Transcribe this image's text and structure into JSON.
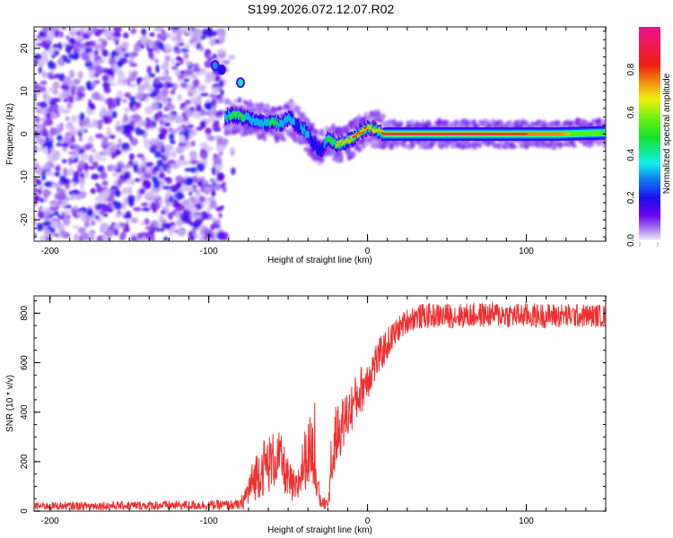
{
  "title": "S199.2026.072.12.07.R02",
  "chart_data": [
    {
      "type": "heatmap",
      "name": "spectrogram",
      "xlabel": "Height of straight line (km)",
      "ylabel": "Frequency (Hz)",
      "xlim": [
        -210,
        150
      ],
      "ylim": [
        -25,
        25
      ],
      "xticks": [
        -200,
        -100,
        0,
        100
      ],
      "yticks": [
        -20,
        -10,
        0,
        10,
        20
      ],
      "colorbar": {
        "label": "Normalized spectral amplitude",
        "range": [
          0,
          1
        ],
        "ticks": [
          0.0,
          0.2,
          0.4,
          0.6,
          0.8
        ],
        "colormap": "rainbow (violet-blue-cyan-green-yellow-red-magenta)"
      },
      "noise_region": {
        "x_range": [
          -210,
          -90
        ],
        "description": "low-amplitude scattered noise (0.0-0.2)"
      },
      "signal_track": {
        "x": [
          -90,
          -85,
          -80,
          -75,
          -70,
          -65,
          -60,
          -55,
          -50,
          -45,
          -40,
          -35,
          -30,
          -25,
          -20,
          -15,
          -10,
          -5,
          0,
          5,
          10,
          20,
          40,
          60,
          80,
          100,
          120,
          140,
          150
        ],
        "freq": [
          4,
          4.5,
          4,
          3.5,
          3,
          2.5,
          3,
          2,
          4,
          2,
          1,
          -2,
          -4,
          -1,
          -2.5,
          -2,
          -1,
          0.5,
          1.5,
          1,
          0,
          0,
          0,
          0,
          0,
          0,
          0,
          0.2,
          0.3
        ],
        "amplitude": [
          0.45,
          0.55,
          0.6,
          0.4,
          0.5,
          0.35,
          0.65,
          0.35,
          0.4,
          0.3,
          0.35,
          0.3,
          0.2,
          0.55,
          0.7,
          0.8,
          0.85,
          0.85,
          0.85,
          0.75,
          0.9,
          0.92,
          0.92,
          0.9,
          0.88,
          0.85,
          0.75,
          0.6,
          0.5
        ]
      },
      "secondary_blobs": [
        {
          "x": -80,
          "freq": 12,
          "amplitude": 0.4
        },
        {
          "x": -96,
          "freq": 16,
          "amplitude": 0.3
        },
        {
          "x": -92,
          "freq": 15,
          "amplitude": 0.2
        }
      ]
    },
    {
      "type": "line",
      "name": "snr",
      "xlabel": "Height of straight line (km)",
      "ylabel": "SNR (10 * v/v)",
      "xlim": [
        -210,
        150
      ],
      "ylim": [
        0,
        870
      ],
      "xticks": [
        -200,
        -100,
        0,
        100
      ],
      "yticks": [
        0,
        200,
        400,
        600,
        800
      ],
      "color": "#f03030",
      "envelope": {
        "x": [
          -210,
          -80,
          -75,
          -70,
          -65,
          -60,
          -55,
          -50,
          -45,
          -40,
          -35,
          -30,
          -25,
          -20,
          -15,
          -10,
          -5,
          0,
          5,
          10,
          15,
          20,
          25,
          30,
          40,
          60,
          80,
          100,
          120,
          150
        ],
        "mean": [
          20,
          25,
          80,
          150,
          180,
          200,
          220,
          120,
          80,
          200,
          260,
          40,
          20,
          300,
          360,
          420,
          480,
          540,
          600,
          650,
          700,
          740,
          770,
          785,
          790,
          790,
          795,
          790,
          790,
          790
        ],
        "spread": [
          15,
          20,
          70,
          100,
          120,
          120,
          100,
          90,
          70,
          120,
          140,
          30,
          20,
          120,
          110,
          100,
          100,
          90,
          80,
          70,
          60,
          50,
          50,
          50,
          50,
          50,
          50,
          50,
          50,
          45
        ]
      }
    }
  ]
}
